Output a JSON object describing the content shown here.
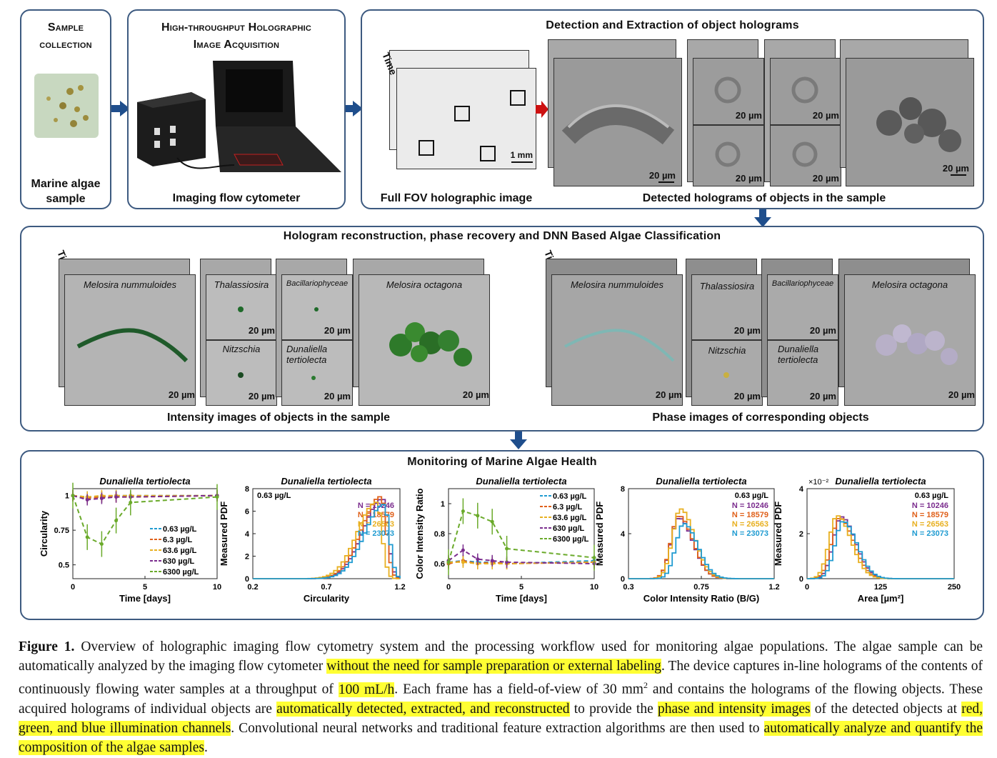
{
  "panels": {
    "sample": {
      "title_line1": "Sample",
      "title_line2": "collection",
      "label_line1": "Marine algae",
      "label_line2": "sample"
    },
    "acquisition": {
      "title_line1": "High-throughput Holographic",
      "title_line2": "Image Acquisition",
      "label": "Imaging flow cytometer"
    },
    "detection": {
      "title": "Detection and Extraction of object holograms",
      "time_label": "Time",
      "fov_label": "Full FOV holographic image",
      "fov_scalebar": "1 mm",
      "detected_label": "Detected holograms of objects in the sample",
      "scalebar": "20 µm"
    },
    "reconstruction": {
      "title": "Hologram reconstruction, phase recovery and DNN Based Algae Classification",
      "time_label": "Time",
      "intensity_label": "Intensity images of  objects in the sample",
      "phase_label": "Phase images of corresponding objects",
      "scalebar": "20 µm",
      "species": {
        "s1": "Melosira nummuloides",
        "s2": "Thalassiosira",
        "s3": "Bacillariophyceae",
        "s4": "Nitzschia",
        "s5_line1": "Dunaliella",
        "s5_line2": "tertiolecta",
        "s6": "Melosira octagona"
      }
    },
    "monitoring": {
      "title": "Monitoring of Marine Algae Health"
    }
  },
  "colors": {
    "panel_border": "#3d5a80",
    "arrow": "#1f4e8c",
    "red_arrow": "#cc1111",
    "highlight": "#ffff33"
  },
  "chart_data": [
    {
      "type": "line",
      "title": "Dunaliella tertiolecta",
      "xlabel": "Time [days]",
      "ylabel": "Circularity",
      "xlim": [
        0,
        10
      ],
      "ylim": [
        0.4,
        1.05
      ],
      "xticks": [
        "0",
        "5",
        "10"
      ],
      "yticks": [
        "0.5",
        "0.75",
        "1"
      ],
      "x": [
        0,
        1,
        2,
        3,
        4,
        10
      ],
      "series": [
        {
          "name": "0.63 µg/L",
          "color": "#1f9bd1",
          "values": [
            1.0,
            0.99,
            0.99,
            1.0,
            1.0,
            1.0
          ]
        },
        {
          "name": "6.3 µg/L",
          "color": "#e0601a",
          "values": [
            1.0,
            0.98,
            0.99,
            0.99,
            0.99,
            1.0
          ]
        },
        {
          "name": "63.6 µg/L",
          "color": "#e8b020",
          "values": [
            1.0,
            0.99,
            1.0,
            1.0,
            1.0,
            1.0
          ]
        },
        {
          "name": "630 µg/L",
          "color": "#7b2d8e",
          "values": [
            1.0,
            0.97,
            0.98,
            0.99,
            0.99,
            1.0
          ]
        },
        {
          "name": "6300 µg/L",
          "color": "#6aaa2a",
          "values": [
            1.0,
            0.7,
            0.65,
            0.82,
            0.95,
            0.99
          ]
        }
      ]
    },
    {
      "type": "line",
      "title": "Dunaliella tertiolecta",
      "xlabel": "Circularity",
      "ylabel": "Measured PDF",
      "xlim": [
        0.2,
        1.2
      ],
      "ylim": [
        0,
        8
      ],
      "xticks": [
        "0.2",
        "0.7",
        "1.2"
      ],
      "yticks": [
        "0",
        "2",
        "4",
        "6",
        "8"
      ],
      "legend_title": "0.63 µg/L",
      "series": [
        {
          "name": "N = 10246",
          "color": "#7b2d8e",
          "peak_x": 1.07,
          "peak_y": 7.1
        },
        {
          "name": "N = 18579",
          "color": "#e0601a",
          "peak_x": 1.06,
          "peak_y": 7.3
        },
        {
          "name": "N = 26563",
          "color": "#e8b020",
          "peak_x": 1.03,
          "peak_y": 6.8
        },
        {
          "name": "N = 23073",
          "color": "#1f9bd1",
          "peak_x": 1.08,
          "peak_y": 6.6
        }
      ]
    },
    {
      "type": "line",
      "title": "Dunaliella tertiolecta",
      "xlabel": "Time [days]",
      "ylabel": "Color Intensity Ratio",
      "xlim": [
        0,
        10
      ],
      "ylim": [
        0.5,
        1.1
      ],
      "xticks": [
        "0",
        "5",
        "10"
      ],
      "yticks": [
        "0.6",
        "0.8",
        "1"
      ],
      "x": [
        0,
        1,
        2,
        3,
        4,
        10
      ],
      "series": [
        {
          "name": "0.63 µg/L",
          "color": "#1f9bd1",
          "values": [
            0.61,
            0.62,
            0.61,
            0.61,
            0.6,
            0.62
          ]
        },
        {
          "name": "6.3 µg/L",
          "color": "#e0601a",
          "values": [
            0.6,
            0.62,
            0.6,
            0.61,
            0.6,
            0.61
          ]
        },
        {
          "name": "63.6 µg/L",
          "color": "#e8b020",
          "values": [
            0.61,
            0.61,
            0.6,
            0.6,
            0.6,
            0.61
          ]
        },
        {
          "name": "630 µg/L",
          "color": "#7b2d8e",
          "values": [
            0.62,
            0.69,
            0.63,
            0.62,
            0.61,
            0.6
          ]
        },
        {
          "name": "6300 µg/L",
          "color": "#6aaa2a",
          "values": [
            0.61,
            0.95,
            0.92,
            0.88,
            0.7,
            0.64
          ]
        }
      ]
    },
    {
      "type": "line",
      "title": "Dunaliella tertiolecta",
      "xlabel": "Color Intensity Ratio (B/G)",
      "ylabel": "Measured PDF",
      "xlim": [
        0.3,
        1.2
      ],
      "ylim": [
        0,
        8
      ],
      "xticks": [
        "0.3",
        "0.75",
        "1.2"
      ],
      "yticks": [
        "0",
        "4",
        "8"
      ],
      "legend_title": "0.63 µg/L",
      "series": [
        {
          "name": "N = 10246",
          "color": "#7b2d8e",
          "peak_x": 0.6,
          "peak_y": 5.4
        },
        {
          "name": "N = 18579",
          "color": "#e0601a",
          "peak_x": 0.6,
          "peak_y": 5.6
        },
        {
          "name": "N = 26563",
          "color": "#e8b020",
          "peak_x": 0.61,
          "peak_y": 6.2
        },
        {
          "name": "N = 23073",
          "color": "#1f9bd1",
          "peak_x": 0.63,
          "peak_y": 4.9
        }
      ]
    },
    {
      "type": "line",
      "title": "Dunaliella tertiolecta",
      "scale_note": "×10⁻²",
      "xlabel": "Area [µm²]",
      "ylabel": "Measured PDF",
      "xlim": [
        0,
        250
      ],
      "ylim": [
        0,
        4
      ],
      "xticks": [
        "0",
        "125",
        "250"
      ],
      "yticks": [
        "0",
        "2",
        "4"
      ],
      "legend_title": "0.63 µg/L",
      "series": [
        {
          "name": "N = 10246",
          "color": "#7b2d8e",
          "peak_x": 55,
          "peak_y": 2.75
        },
        {
          "name": "N = 18579",
          "color": "#e0601a",
          "peak_x": 52,
          "peak_y": 2.7
        },
        {
          "name": "N = 26563",
          "color": "#e8b020",
          "peak_x": 48,
          "peak_y": 2.8
        },
        {
          "name": "N = 23073",
          "color": "#1f9bd1",
          "peak_x": 58,
          "peak_y": 2.55
        }
      ]
    }
  ],
  "caption": {
    "label": "Figure 1.",
    "t1": " Overview of holographic imaging flow cytometry system and the processing workflow used for monitoring algae populations. The algae sample can be automatically analyzed by the imaging flow cytometer ",
    "h1": "without the need for sample preparation or external labeling",
    "t2": ". The device captures in-line holograms of the contents of continuously flowing water samples at a throughput of ",
    "h2": "100 mL/h",
    "t3": ". Each frame has a field-of-view of 30 mm",
    "sup": "2",
    "t4": " and contains the holograms of the flowing objects. These acquired holograms of individual objects are ",
    "h3": "automatically detected, extracted, and reconstructed",
    "t5": " to provide the ",
    "h4": "phase and intensity images",
    "t6": " of the detected objects at ",
    "h5": "red, green, and blue illumination channels",
    "t7": ". Convolutional neural networks and traditional feature extraction algorithms are then used to ",
    "h6": "automatically analyze and quantify the composition of the algae samples",
    "t8": "."
  }
}
